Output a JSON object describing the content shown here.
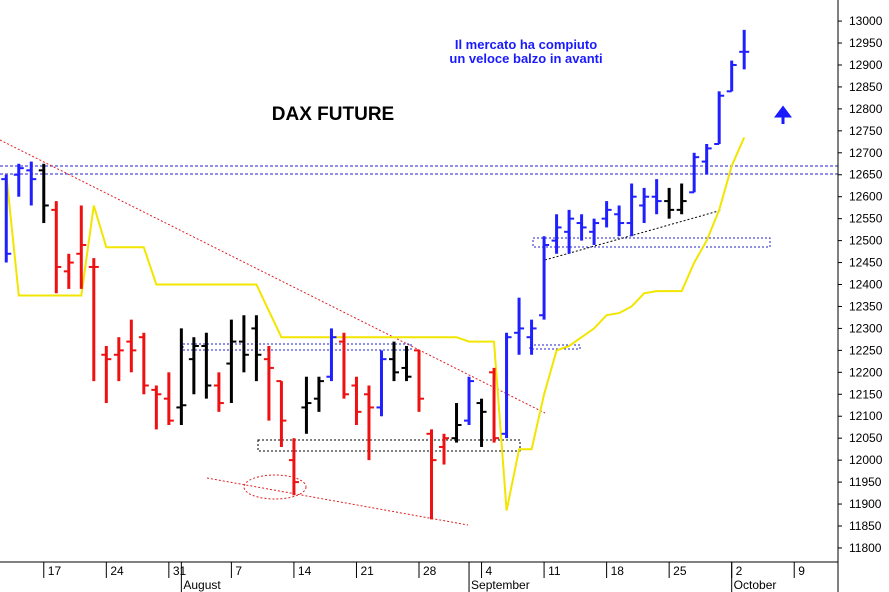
{
  "chart_data": {
    "type": "ohlc",
    "title": "DAX FUTURE",
    "annotations": [
      "Il mercato ha compiuto",
      "un veloce balzo in avanti"
    ],
    "categories": [
      null,
      null,
      null,
      "17",
      null,
      null,
      null,
      null,
      "24",
      null,
      null,
      null,
      null,
      "31",
      null,
      null,
      null,
      null,
      "7",
      null,
      null,
      null,
      null,
      "14",
      null,
      null,
      null,
      null,
      "21",
      null,
      null,
      null,
      null,
      "28",
      null,
      null,
      null,
      null,
      "4",
      null,
      null,
      null,
      null,
      "11",
      null,
      null,
      null,
      null,
      "18",
      null,
      null,
      null,
      null,
      "25",
      null,
      null,
      null,
      null,
      "2",
      null,
      null,
      null,
      null,
      "9",
      null,
      null,
      null
    ],
    "months": [
      null,
      null,
      null,
      null,
      null,
      null,
      null,
      null,
      null,
      null,
      null,
      null,
      null,
      null,
      "August",
      null,
      null,
      null,
      null,
      null,
      null,
      null,
      null,
      null,
      null,
      null,
      null,
      null,
      null,
      null,
      null,
      null,
      null,
      null,
      null,
      null,
      null,
      "September",
      null,
      null,
      null,
      null,
      null,
      null,
      null,
      null,
      null,
      null,
      null,
      null,
      null,
      null,
      null,
      null,
      null,
      null,
      null,
      null,
      "October",
      null,
      null,
      null,
      null,
      null,
      null,
      null,
      null
    ],
    "ohlc": {
      "open": [
        12640,
        12650,
        12660,
        12660,
        12570,
        12430,
        12470,
        12440,
        12240,
        12240,
        12270,
        12280,
        12160,
        12140,
        12120,
        12230,
        12260,
        12170,
        12220,
        12270,
        12300,
        12230,
        12180,
        12000,
        12120,
        12140,
        12190,
        12270,
        12170,
        12150,
        12120,
        12230,
        12210,
        12250,
        12060,
        12030,
        12050,
        12090,
        12130,
        12200,
        12060,
        12290,
        12280,
        12330,
        12500,
        12520,
        12540,
        12520,
        12550,
        12560,
        12540,
        12580,
        12600,
        12590,
        12570,
        12610,
        12680,
        12720,
        12840,
        12930,
        null,
        null,
        null,
        null,
        null,
        null,
        null
      ],
      "high": [
        12650,
        12675,
        12680,
        12675,
        12590,
        12470,
        12580,
        12460,
        12260,
        12280,
        12320,
        12290,
        12170,
        12200,
        12300,
        12280,
        12290,
        12200,
        12320,
        12330,
        12330,
        12260,
        12180,
        12050,
        12190,
        12190,
        12300,
        12290,
        12190,
        12170,
        12250,
        12270,
        12260,
        12250,
        12070,
        12060,
        12130,
        12190,
        12140,
        12210,
        12290,
        12370,
        12320,
        12510,
        12560,
        12570,
        12560,
        12550,
        12590,
        12580,
        12630,
        12620,
        12640,
        12620,
        12630,
        12700,
        12720,
        12840,
        12910,
        12980,
        null,
        null,
        null,
        null,
        null,
        null,
        null
      ],
      "low": [
        12450,
        12600,
        12580,
        12540,
        12380,
        12390,
        12390,
        12180,
        12130,
        12180,
        12200,
        12150,
        12070,
        12080,
        12080,
        12150,
        12140,
        12110,
        12130,
        12200,
        12180,
        12090,
        12030,
        11920,
        12060,
        12110,
        12180,
        12140,
        12080,
        12000,
        12100,
        12180,
        12180,
        12110,
        11865,
        11990,
        12040,
        12080,
        12030,
        12040,
        12050,
        12240,
        12240,
        12320,
        12470,
        12470,
        12500,
        12490,
        12530,
        12510,
        12510,
        12540,
        12560,
        12550,
        12560,
        12610,
        12650,
        12720,
        12840,
        12890,
        null,
        null,
        null,
        null,
        null,
        null,
        null
      ],
      "close": [
        12470,
        12665,
        12640,
        12580,
        12440,
        12450,
        12490,
        12440,
        12230,
        12250,
        12250,
        12170,
        12150,
        12090,
        12125,
        12260,
        12170,
        12130,
        12270,
        12240,
        12240,
        12210,
        12090,
        11950,
        12130,
        12180,
        12280,
        12150,
        12110,
        12120,
        12230,
        12200,
        12190,
        12140,
        12000,
        12050,
        12080,
        12180,
        12110,
        12050,
        12280,
        12300,
        12300,
        12490,
        12530,
        12550,
        12530,
        12540,
        12570,
        12540,
        12600,
        12600,
        12590,
        12570,
        12590,
        12690,
        12710,
        12830,
        12900,
        12930,
        null,
        null,
        null,
        null,
        null,
        null,
        null
      ],
      "colors": [
        "#1f1fff",
        "#1f1fff",
        "#1f1fff",
        "#000000",
        "#ee1111",
        "#ee1111",
        "#ee1111",
        "#ee1111",
        "#ee1111",
        "#ee1111",
        "#ee1111",
        "#ee1111",
        "#ee1111",
        "#ee1111",
        "#000000",
        "#000000",
        "#000000",
        "#ee1111",
        "#000000",
        "#000000",
        "#000000",
        "#ee1111",
        "#ee1111",
        "#ee1111",
        "#000000",
        "#000000",
        "#1f1fff",
        "#ee1111",
        "#ee1111",
        "#ee1111",
        "#1f1fff",
        "#000000",
        "#000000",
        "#ee1111",
        "#ee1111",
        "#ee1111",
        "#000000",
        "#1f1fff",
        "#000000",
        "#ee1111",
        "#1f1fff",
        "#1f1fff",
        "#1f1fff",
        "#1f1fff",
        "#1f1fff",
        "#1f1fff",
        "#1f1fff",
        "#1f1fff",
        "#1f1fff",
        "#1f1fff",
        "#1f1fff",
        "#1f1fff",
        "#1f1fff",
        "#000000",
        "#000000",
        "#1f1fff",
        "#1f1fff",
        "#1f1fff",
        "#1f1fff",
        "#1f1fff",
        null,
        null,
        null,
        null,
        null,
        null,
        null
      ]
    },
    "line": {
      "color": "#f2e600",
      "values": [
        12650,
        12375,
        12375,
        12375,
        12375,
        12375,
        12375,
        12580,
        12485,
        12485,
        12485,
        12485,
        12400,
        12400,
        12400,
        12400,
        12400,
        12400,
        12400,
        12400,
        12400,
        12340,
        12280,
        12280,
        12280,
        12280,
        12280,
        12280,
        12280,
        12280,
        12280,
        12280,
        12280,
        12280,
        12280,
        12280,
        12280,
        12270,
        12270,
        12270,
        11885,
        12025,
        12025,
        12150,
        12250,
        12260,
        12280,
        12300,
        12330,
        12335,
        12350,
        12380,
        12385,
        12385,
        12385,
        12450,
        12500,
        12570,
        12670,
        12735,
        null,
        null,
        null,
        null,
        null,
        null,
        null
      ]
    },
    "ylim": [
      11768,
      13048
    ],
    "yticks": [
      11800,
      11850,
      11900,
      11950,
      12000,
      12050,
      12100,
      12150,
      12200,
      12250,
      12300,
      12350,
      12400,
      12450,
      12500,
      12550,
      12600,
      12650,
      12700,
      12750,
      12800,
      12850,
      12900,
      12950,
      13000
    ]
  }
}
